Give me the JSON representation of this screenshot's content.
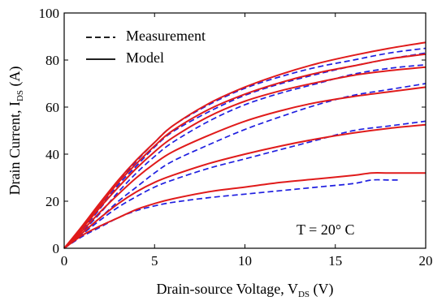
{
  "chart_data": {
    "type": "line",
    "title": "",
    "xlabel": {
      "main": "Drain-source Voltage, V",
      "sub": "DS",
      "unit": " (V)"
    },
    "ylabel": {
      "main": "Drain Current, I",
      "sub": "DS",
      "unit": " (A)"
    },
    "xlim": [
      0,
      20
    ],
    "ylim": [
      0,
      100
    ],
    "xticks": [
      0,
      5,
      10,
      15,
      20
    ],
    "yticks": [
      0,
      20,
      40,
      60,
      80,
      100
    ],
    "grid": false,
    "legend": {
      "placement": "top-left",
      "entries": [
        {
          "label": "Measurement",
          "style": "dashed"
        },
        {
          "label": "Model",
          "style": "solid"
        }
      ]
    },
    "annotation": "T = 20° C",
    "series": [
      {
        "kind": "measurement",
        "color": "#1f1fe0",
        "style": "dashed",
        "points": [
          [
            0,
            0
          ],
          [
            1,
            5
          ],
          [
            2,
            9
          ],
          [
            3,
            13
          ],
          [
            4,
            16
          ],
          [
            5,
            18
          ],
          [
            6,
            19.5
          ],
          [
            8,
            21.5
          ],
          [
            10,
            23
          ],
          [
            12,
            24.5
          ],
          [
            14,
            26
          ],
          [
            16,
            27.5
          ],
          [
            17,
            29
          ],
          [
            18,
            29
          ],
          [
            18.5,
            29
          ]
        ]
      },
      {
        "kind": "measurement",
        "color": "#1f1fe0",
        "style": "dashed",
        "points": [
          [
            0,
            0
          ],
          [
            1,
            6
          ],
          [
            2,
            12
          ],
          [
            3,
            17.5
          ],
          [
            4,
            22
          ],
          [
            5,
            26
          ],
          [
            6,
            29
          ],
          [
            8,
            34
          ],
          [
            10,
            38
          ],
          [
            12,
            42
          ],
          [
            14,
            46
          ],
          [
            16,
            50
          ],
          [
            18,
            52
          ],
          [
            20,
            54
          ]
        ]
      },
      {
        "kind": "measurement",
        "color": "#1f1fe0",
        "style": "dashed",
        "points": [
          [
            0,
            0
          ],
          [
            1,
            6.5
          ],
          [
            2,
            13
          ],
          [
            3,
            20
          ],
          [
            4,
            26
          ],
          [
            5,
            32
          ],
          [
            6,
            37
          ],
          [
            8,
            44
          ],
          [
            10,
            50.5
          ],
          [
            12,
            56
          ],
          [
            14,
            61
          ],
          [
            16,
            65
          ],
          [
            18,
            67.5
          ],
          [
            20,
            70
          ]
        ]
      },
      {
        "kind": "measurement",
        "color": "#1f1fe0",
        "style": "dashed",
        "points": [
          [
            0,
            0
          ],
          [
            1,
            7
          ],
          [
            2,
            15
          ],
          [
            3,
            24
          ],
          [
            4,
            32
          ],
          [
            5,
            39
          ],
          [
            6,
            45
          ],
          [
            8,
            54
          ],
          [
            10,
            61
          ],
          [
            12,
            66
          ],
          [
            14,
            70
          ],
          [
            16,
            74
          ],
          [
            18,
            76.5
          ],
          [
            20,
            78
          ]
        ]
      },
      {
        "kind": "measurement",
        "color": "#1f1fe0",
        "style": "dashed",
        "points": [
          [
            0,
            0
          ],
          [
            1,
            8
          ],
          [
            2,
            17
          ],
          [
            3,
            27
          ],
          [
            4,
            35
          ],
          [
            5,
            43
          ],
          [
            6,
            49.5
          ],
          [
            8,
            58
          ],
          [
            10,
            65
          ],
          [
            12,
            70
          ],
          [
            14,
            74
          ],
          [
            16,
            77.5
          ],
          [
            18,
            80.5
          ],
          [
            20,
            83
          ]
        ]
      },
      {
        "kind": "measurement",
        "color": "#1f1fe0",
        "style": "dashed",
        "points": [
          [
            0,
            0
          ],
          [
            1,
            8.5
          ],
          [
            2,
            18
          ],
          [
            3,
            28
          ],
          [
            4,
            37
          ],
          [
            5,
            45
          ],
          [
            6,
            52
          ],
          [
            8,
            61
          ],
          [
            10,
            68
          ],
          [
            12,
            73
          ],
          [
            14,
            77
          ],
          [
            16,
            80
          ],
          [
            18,
            83
          ],
          [
            20,
            85
          ]
        ]
      },
      {
        "kind": "model",
        "color": "#e01b1b",
        "style": "solid",
        "points": [
          [
            0,
            0
          ],
          [
            1,
            5.5
          ],
          [
            2,
            9.5
          ],
          [
            3,
            13
          ],
          [
            4,
            16.5
          ],
          [
            5,
            19
          ],
          [
            6,
            21
          ],
          [
            8,
            24
          ],
          [
            10,
            26
          ],
          [
            12,
            28
          ],
          [
            14,
            29.5
          ],
          [
            16,
            31
          ],
          [
            17,
            32
          ],
          [
            18,
            32
          ],
          [
            20,
            32
          ]
        ]
      },
      {
        "kind": "model",
        "color": "#e01b1b",
        "style": "solid",
        "points": [
          [
            0,
            0
          ],
          [
            1,
            6.5
          ],
          [
            2,
            13
          ],
          [
            3,
            19
          ],
          [
            4,
            24
          ],
          [
            5,
            28
          ],
          [
            6,
            31
          ],
          [
            8,
            36
          ],
          [
            10,
            40
          ],
          [
            12,
            43.5
          ],
          [
            14,
            46.5
          ],
          [
            16,
            49
          ],
          [
            18,
            51
          ],
          [
            20,
            52.5
          ]
        ]
      },
      {
        "kind": "model",
        "color": "#e01b1b",
        "style": "solid",
        "points": [
          [
            0,
            0
          ],
          [
            1,
            7.5
          ],
          [
            2,
            15.5
          ],
          [
            3,
            23
          ],
          [
            4,
            30
          ],
          [
            5,
            36
          ],
          [
            6,
            41
          ],
          [
            8,
            48
          ],
          [
            10,
            54
          ],
          [
            12,
            58.5
          ],
          [
            14,
            62
          ],
          [
            16,
            64.5
          ],
          [
            18,
            66.5
          ],
          [
            20,
            68.5
          ]
        ]
      },
      {
        "kind": "model",
        "color": "#e01b1b",
        "style": "solid",
        "points": [
          [
            0,
            0
          ],
          [
            1,
            8.5
          ],
          [
            2,
            17.5
          ],
          [
            3,
            26
          ],
          [
            4,
            34
          ],
          [
            5,
            41
          ],
          [
            6,
            47
          ],
          [
            8,
            56
          ],
          [
            10,
            62.5
          ],
          [
            12,
            67
          ],
          [
            14,
            70.5
          ],
          [
            16,
            73.5
          ],
          [
            18,
            75.5
          ],
          [
            20,
            77
          ]
        ]
      },
      {
        "kind": "model",
        "color": "#e01b1b",
        "style": "solid",
        "points": [
          [
            0,
            0
          ],
          [
            1,
            9
          ],
          [
            2,
            18.5
          ],
          [
            3,
            28
          ],
          [
            4,
            36
          ],
          [
            5,
            43.5
          ],
          [
            6,
            50
          ],
          [
            8,
            59
          ],
          [
            10,
            65.5
          ],
          [
            12,
            70.5
          ],
          [
            14,
            74.5
          ],
          [
            16,
            77.5
          ],
          [
            18,
            80.5
          ],
          [
            20,
            82.5
          ]
        ]
      },
      {
        "kind": "model",
        "color": "#e01b1b",
        "style": "solid",
        "points": [
          [
            0,
            0
          ],
          [
            1,
            9.5
          ],
          [
            2,
            19.5
          ],
          [
            3,
            29
          ],
          [
            4,
            37.5
          ],
          [
            5,
            45
          ],
          [
            6,
            52
          ],
          [
            8,
            61.5
          ],
          [
            10,
            68.5
          ],
          [
            12,
            74
          ],
          [
            14,
            78.5
          ],
          [
            16,
            82
          ],
          [
            18,
            85
          ],
          [
            20,
            87.5
          ]
        ]
      }
    ]
  }
}
